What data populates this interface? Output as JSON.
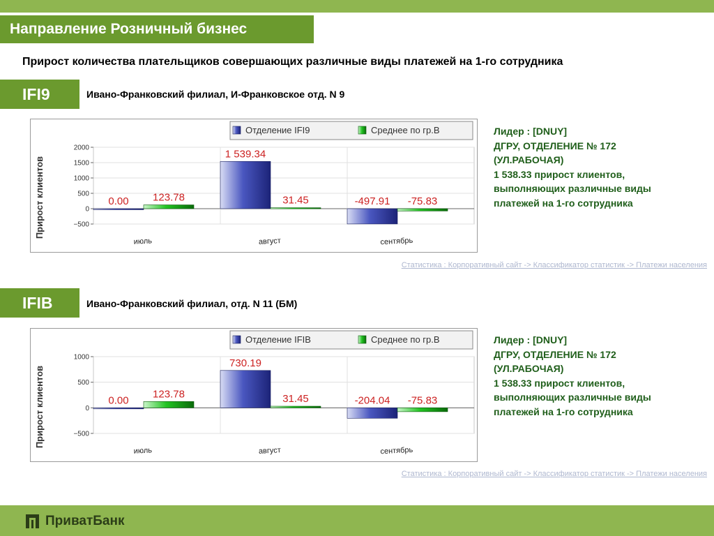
{
  "header": {
    "title": "Направление Розничный бизнес",
    "subtitle": "Прирост количества плательщиков совершающих различные виды платежей на 1-го сотрудника"
  },
  "colors": {
    "accent": "#6b9a2e",
    "bar_light": "#8fb650",
    "leader_text": "#1f5e1a",
    "link": "#aeb7cf",
    "series_blue": "#2a36a0",
    "series_green": "#12b212",
    "value_red": "#cc2222"
  },
  "sections": [
    {
      "code": "IFI9",
      "branch": "Ивано-Франковский филиал, И-Франковское отд. N 9",
      "leader_lines": [
        "Лидер : [DNUY]",
        "ДГРУ, ОТДЕЛЕНИЕ № 172",
        "(УЛ.РАБОЧАЯ)",
        "1 538.33 прирост клиентов,",
        "выполняющих различные виды",
        "платежей на 1-го сотрудника"
      ],
      "link": "Статистика : Корпоративный сайт -> Классификатор статистик -> Платежи населения"
    },
    {
      "code": "IFIB",
      "branch": "Ивано-Франковский филиал, отд. N 11 (БМ)",
      "leader_lines": [
        "Лидер : [DNUY]",
        "ДГРУ, ОТДЕЛЕНИЕ № 172",
        "(УЛ.РАБОЧАЯ)",
        "1 538.33 прирост клиентов,",
        "выполняющих различные виды",
        "платежей на 1-го сотрудника"
      ],
      "link": "Статистика : Корпоративный сайт -> Классификатор статистик -> Платежи населения"
    }
  ],
  "footer": {
    "logo_text": "ПриватБанк",
    "logo_icon": "privatbank-logo-icon"
  },
  "chart_data": [
    {
      "type": "bar",
      "categories": [
        "июль",
        "август",
        "сентябрь"
      ],
      "ylabel": "Прирост клиентов",
      "ylim": [
        -500,
        2000
      ],
      "yticks": [
        -500,
        0,
        500,
        1000,
        1500,
        2000
      ],
      "ytick_labels": [
        "−500",
        "0",
        "500",
        "1000",
        "1500",
        "2000"
      ],
      "legend_position": "top-right",
      "grid": true,
      "series": [
        {
          "name": "Отделение IFI9",
          "values": [
            0.0,
            1539.34,
            -497.91
          ],
          "labels": [
            "0.00",
            "1 539.34",
            "-497.91"
          ]
        },
        {
          "name": "Среднее по гр.В",
          "values": [
            123.78,
            31.45,
            -75.83
          ],
          "labels": [
            "123.78",
            "31.45",
            "-75.83"
          ]
        }
      ]
    },
    {
      "type": "bar",
      "categories": [
        "июль",
        "август",
        "сентябрь"
      ],
      "ylabel": "Прирост клиентов",
      "ylim": [
        -500,
        1000
      ],
      "yticks": [
        -500,
        0,
        500,
        1000
      ],
      "ytick_labels": [
        "−500",
        "0",
        "500",
        "1000"
      ],
      "legend_position": "top-right",
      "grid": true,
      "series": [
        {
          "name": "Отделение IFIB",
          "values": [
            0.0,
            730.19,
            -204.04
          ],
          "labels": [
            "0.00",
            "730.19",
            "-204.04"
          ]
        },
        {
          "name": "Среднее по гр.В",
          "values": [
            123.78,
            31.45,
            -75.83
          ],
          "labels": [
            "123.78",
            "31.45",
            "-75.83"
          ]
        }
      ]
    }
  ]
}
